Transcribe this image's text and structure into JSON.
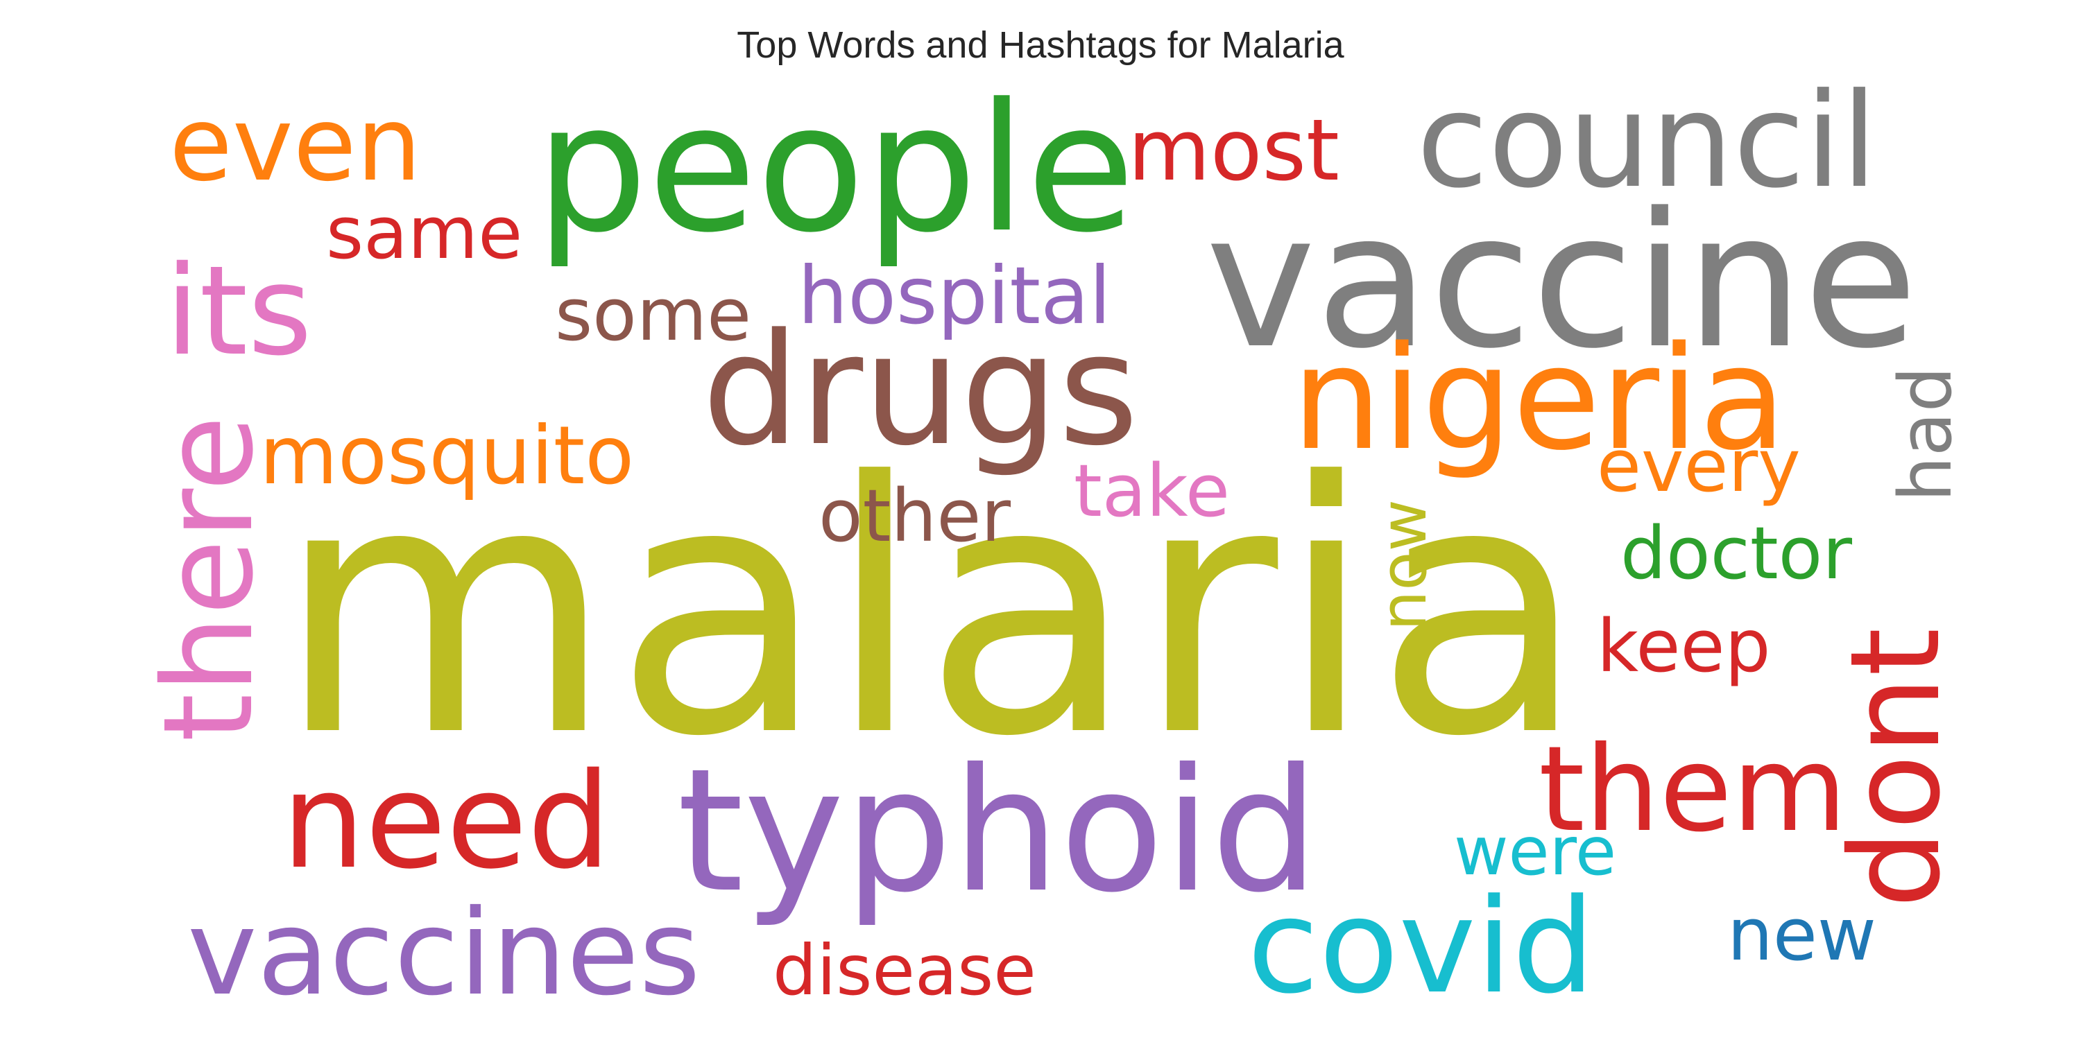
{
  "title": "Top Words and Hashtags for Malaria",
  "colors": {
    "olive": "#bcbd22",
    "gray": "#7f7f7f",
    "green": "#2ca02c",
    "brown": "#8c564b",
    "orange": "#ff7f0e",
    "purple": "#9467bd",
    "red": "#d62728",
    "cyan": "#17becf",
    "pink": "#e377c2",
    "blue": "#1f77b4"
  },
  "words": [
    {
      "text": "malaria",
      "color": "#bcbd22"
    },
    {
      "text": "vaccine",
      "color": "#7f7f7f"
    },
    {
      "text": "people",
      "color": "#2ca02c"
    },
    {
      "text": "council",
      "color": "#7f7f7f"
    },
    {
      "text": "drugs",
      "color": "#8c564b"
    },
    {
      "text": "nigeria",
      "color": "#ff7f0e"
    },
    {
      "text": "typhoid",
      "color": "#9467bd"
    },
    {
      "text": "need",
      "color": "#d62728"
    },
    {
      "text": "vaccines",
      "color": "#9467bd"
    },
    {
      "text": "covid",
      "color": "#17becf"
    },
    {
      "text": "them",
      "color": "#d62728"
    },
    {
      "text": "even",
      "color": "#ff7f0e"
    },
    {
      "text": "its",
      "color": "#e377c2"
    },
    {
      "text": "there",
      "color": "#e377c2"
    },
    {
      "text": "mosquito",
      "color": "#ff7f0e"
    },
    {
      "text": "most",
      "color": "#d62728"
    },
    {
      "text": "same",
      "color": "#d62728"
    },
    {
      "text": "some",
      "color": "#8c564b"
    },
    {
      "text": "hospital",
      "color": "#9467bd"
    },
    {
      "text": "other",
      "color": "#8c564b"
    },
    {
      "text": "take",
      "color": "#e377c2"
    },
    {
      "text": "now",
      "color": "#bcbd22"
    },
    {
      "text": "had",
      "color": "#7f7f7f"
    },
    {
      "text": "every",
      "color": "#ff7f0e"
    },
    {
      "text": "doctor",
      "color": "#2ca02c"
    },
    {
      "text": "keep",
      "color": "#d62728"
    },
    {
      "text": "dont",
      "color": "#d62728"
    },
    {
      "text": "were",
      "color": "#17becf"
    },
    {
      "text": "new",
      "color": "#1f77b4"
    },
    {
      "text": "disease",
      "color": "#d62728"
    }
  ]
}
